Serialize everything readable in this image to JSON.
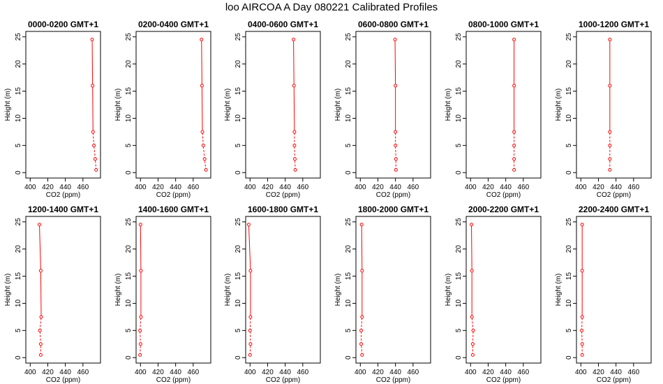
{
  "title": "loo AIRCOA A  Day 080221  Calibrated Profiles",
  "chart_data": [
    {
      "type": "line",
      "title": "0000-0200 GMT+1",
      "xlabel": "CO2 (ppm)",
      "ylabel": "Height (m)",
      "xlim": [
        395,
        480
      ],
      "ylim": [
        -1,
        26
      ],
      "xticks": [
        400,
        420,
        440,
        460
      ],
      "yticks": [
        0,
        5,
        10,
        15,
        20,
        25
      ],
      "color": "#ff0000",
      "points": [
        {
          "x": 475,
          "y": 0.5
        },
        {
          "x": 474,
          "y": 2.5
        },
        {
          "x": 472.5,
          "y": 5
        },
        {
          "x": 471.5,
          "y": 7.5
        },
        {
          "x": 471,
          "y": 16
        },
        {
          "x": 470.5,
          "y": 24.5
        }
      ]
    },
    {
      "type": "line",
      "title": "0200-0400 GMT+1",
      "xlabel": "CO2 (ppm)",
      "ylabel": "Height (m)",
      "xlim": [
        395,
        480
      ],
      "ylim": [
        -1,
        26
      ],
      "xticks": [
        400,
        420,
        440,
        460
      ],
      "yticks": [
        0,
        5,
        10,
        15,
        20,
        25
      ],
      "color": "#ff0000",
      "points": [
        {
          "x": 474.5,
          "y": 0.5
        },
        {
          "x": 473,
          "y": 2.5
        },
        {
          "x": 471.5,
          "y": 5
        },
        {
          "x": 470.5,
          "y": 7.5
        },
        {
          "x": 470,
          "y": 16
        },
        {
          "x": 469.5,
          "y": 24.5
        }
      ]
    },
    {
      "type": "line",
      "title": "0400-0600 GMT+1",
      "xlabel": "CO2 (ppm)",
      "ylabel": "Height (m)",
      "xlim": [
        395,
        480
      ],
      "ylim": [
        -1,
        26
      ],
      "xticks": [
        400,
        420,
        440,
        460
      ],
      "yticks": [
        0,
        5,
        10,
        15,
        20,
        25
      ],
      "color": "#ff0000",
      "points": [
        {
          "x": 451.5,
          "y": 0.5
        },
        {
          "x": 451,
          "y": 2.5
        },
        {
          "x": 450.5,
          "y": 5
        },
        {
          "x": 450.5,
          "y": 7.5
        },
        {
          "x": 450,
          "y": 16
        },
        {
          "x": 449.5,
          "y": 24.5
        }
      ]
    },
    {
      "type": "line",
      "title": "0600-0800 GMT+1",
      "xlabel": "CO2 (ppm)",
      "ylabel": "Height (m)",
      "xlim": [
        395,
        480
      ],
      "ylim": [
        -1,
        26
      ],
      "xticks": [
        400,
        420,
        440,
        460
      ],
      "yticks": [
        0,
        5,
        10,
        15,
        20,
        25
      ],
      "color": "#ff0000",
      "points": [
        {
          "x": 440.5,
          "y": 0.5
        },
        {
          "x": 440.5,
          "y": 2.5
        },
        {
          "x": 440,
          "y": 5
        },
        {
          "x": 440,
          "y": 7.5
        },
        {
          "x": 440,
          "y": 16
        },
        {
          "x": 439.5,
          "y": 24.5
        }
      ]
    },
    {
      "type": "line",
      "title": "0800-1000 GMT+1",
      "xlabel": "CO2 (ppm)",
      "ylabel": "Height (m)",
      "xlim": [
        395,
        480
      ],
      "ylim": [
        -1,
        26
      ],
      "xticks": [
        400,
        420,
        440,
        460
      ],
      "yticks": [
        0,
        5,
        10,
        15,
        20,
        25
      ],
      "color": "#ff0000",
      "points": [
        {
          "x": 449.5,
          "y": 0.5
        },
        {
          "x": 449.5,
          "y": 2.5
        },
        {
          "x": 449.5,
          "y": 5
        },
        {
          "x": 449.5,
          "y": 7.5
        },
        {
          "x": 449.5,
          "y": 16
        },
        {
          "x": 449.5,
          "y": 24.5
        }
      ]
    },
    {
      "type": "line",
      "title": "1000-1200 GMT+1",
      "xlabel": "CO2 (ppm)",
      "ylabel": "Height (m)",
      "xlim": [
        395,
        480
      ],
      "ylim": [
        -1,
        26
      ],
      "xticks": [
        400,
        420,
        440,
        460
      ],
      "yticks": [
        0,
        5,
        10,
        15,
        20,
        25
      ],
      "color": "#ff0000",
      "points": [
        {
          "x": 433,
          "y": 0.5
        },
        {
          "x": 433,
          "y": 2.5
        },
        {
          "x": 433,
          "y": 5
        },
        {
          "x": 433,
          "y": 7.5
        },
        {
          "x": 433,
          "y": 16
        },
        {
          "x": 433,
          "y": 24.5
        }
      ]
    },
    {
      "type": "line",
      "title": "1200-1400 GMT+1",
      "xlabel": "CO2 (ppm)",
      "ylabel": "Height (m)",
      "xlim": [
        395,
        480
      ],
      "ylim": [
        -1,
        26
      ],
      "xticks": [
        400,
        420,
        440,
        460
      ],
      "yticks": [
        0,
        5,
        10,
        15,
        20,
        25
      ],
      "color": "#ff0000",
      "points": [
        {
          "x": 412,
          "y": 0.5
        },
        {
          "x": 412,
          "y": 2.5
        },
        {
          "x": 411,
          "y": 5
        },
        {
          "x": 412.5,
          "y": 7.5
        },
        {
          "x": 412,
          "y": 16
        },
        {
          "x": 410.5,
          "y": 24.5
        }
      ]
    },
    {
      "type": "line",
      "title": "1400-1600 GMT+1",
      "xlabel": "CO2 (ppm)",
      "ylabel": "Height (m)",
      "xlim": [
        395,
        480
      ],
      "ylim": [
        -1,
        26
      ],
      "xticks": [
        400,
        420,
        440,
        460
      ],
      "yticks": [
        0,
        5,
        10,
        15,
        20,
        25
      ],
      "color": "#ff0000",
      "points": [
        {
          "x": 399.5,
          "y": 0.5
        },
        {
          "x": 400,
          "y": 2.5
        },
        {
          "x": 399.5,
          "y": 5
        },
        {
          "x": 400.5,
          "y": 7.5
        },
        {
          "x": 400.5,
          "y": 16
        },
        {
          "x": 400,
          "y": 24.5
        }
      ]
    },
    {
      "type": "line",
      "title": "1600-1800 GMT+1",
      "xlabel": "CO2 (ppm)",
      "ylabel": "Height (m)",
      "xlim": [
        395,
        480
      ],
      "ylim": [
        -1,
        26
      ],
      "xticks": [
        400,
        420,
        440,
        460
      ],
      "yticks": [
        0,
        5,
        10,
        15,
        20,
        25
      ],
      "color": "#ff0000",
      "points": [
        {
          "x": 400,
          "y": 0.5
        },
        {
          "x": 400.5,
          "y": 2.5
        },
        {
          "x": 400,
          "y": 5
        },
        {
          "x": 400.5,
          "y": 7.5
        },
        {
          "x": 400.5,
          "y": 16
        },
        {
          "x": 398.5,
          "y": 24.5
        }
      ]
    },
    {
      "type": "line",
      "title": "1800-2000 GMT+1",
      "xlabel": "CO2 (ppm)",
      "ylabel": "Height (m)",
      "xlim": [
        395,
        480
      ],
      "ylim": [
        -1,
        26
      ],
      "xticks": [
        400,
        420,
        440,
        460
      ],
      "yticks": [
        0,
        5,
        10,
        15,
        20,
        25
      ],
      "color": "#ff0000",
      "points": [
        {
          "x": 402,
          "y": 0.5
        },
        {
          "x": 401,
          "y": 2.5
        },
        {
          "x": 401,
          "y": 5
        },
        {
          "x": 402,
          "y": 7.5
        },
        {
          "x": 402,
          "y": 16
        },
        {
          "x": 401.5,
          "y": 24.5
        }
      ]
    },
    {
      "type": "line",
      "title": "2000-2200 GMT+1",
      "xlabel": "CO2 (ppm)",
      "ylabel": "Height (m)",
      "xlim": [
        395,
        480
      ],
      "ylim": [
        -1,
        26
      ],
      "xticks": [
        400,
        420,
        440,
        460
      ],
      "yticks": [
        0,
        5,
        10,
        15,
        20,
        25
      ],
      "color": "#ff0000",
      "points": [
        {
          "x": 402.5,
          "y": 0.5
        },
        {
          "x": 402.5,
          "y": 2.5
        },
        {
          "x": 403,
          "y": 5
        },
        {
          "x": 401.5,
          "y": 7.5
        },
        {
          "x": 401.5,
          "y": 16
        },
        {
          "x": 401,
          "y": 24.5
        }
      ]
    },
    {
      "type": "line",
      "title": "2200-2400 GMT+1",
      "xlabel": "CO2 (ppm)",
      "ylabel": "Height (m)",
      "xlim": [
        395,
        480
      ],
      "ylim": [
        -1,
        26
      ],
      "xticks": [
        400,
        420,
        440,
        460
      ],
      "yticks": [
        0,
        5,
        10,
        15,
        20,
        25
      ],
      "color": "#ff0000",
      "points": [
        {
          "x": 401.5,
          "y": 0.5
        },
        {
          "x": 401.5,
          "y": 2.5
        },
        {
          "x": 401,
          "y": 5
        },
        {
          "x": 401.5,
          "y": 7.5
        },
        {
          "x": 401.5,
          "y": 16
        },
        {
          "x": 401.5,
          "y": 24.5
        }
      ]
    }
  ]
}
